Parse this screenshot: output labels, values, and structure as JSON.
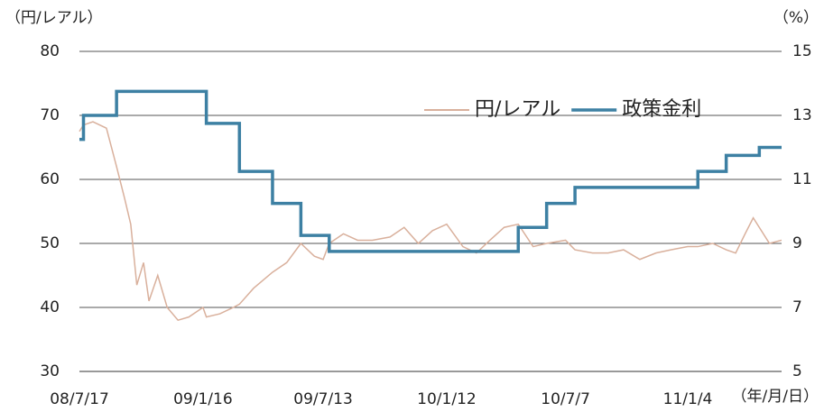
{
  "chart_data": {
    "type": "line",
    "ylabel": "（円/レアル）",
    "y2label": "（%）",
    "xlabel": "（年/月/日）",
    "x": [
      "08/7/17",
      "08/7/23",
      "08/8/6",
      "08/8/26",
      "08/9/10",
      "08/9/22",
      "08/10/1",
      "08/10/10",
      "08/10/20",
      "08/10/28",
      "08/11/10",
      "08/11/24",
      "08/12/10",
      "08/12/26",
      "09/1/16",
      "09/1/21",
      "09/2/10",
      "09/3/2",
      "09/3/11",
      "09/4/1",
      "09/4/29",
      "09/5/20",
      "09/6/10",
      "09/6/30",
      "09/7/13",
      "09/7/22",
      "09/8/12",
      "09/9/2",
      "09/9/24",
      "09/10/20",
      "09/11/10",
      "09/12/1",
      "09/12/22",
      "10/1/12",
      "10/2/5",
      "10/2/25",
      "10/3/17",
      "10/4/7",
      "10/4/28",
      "10/5/20",
      "10/6/9",
      "10/7/7",
      "10/7/21",
      "10/8/16",
      "10/9/8",
      "10/10/1",
      "10/10/25",
      "10/11/18",
      "10/12/10",
      "11/1/4",
      "11/1/19",
      "11/2/10",
      "11/3/2",
      "11/3/16",
      "11/3/30",
      "11/4/11",
      "11/4/20",
      "11/5/5",
      "11/5/23"
    ],
    "series": [
      {
        "name": "円/レアル",
        "color": "#d9b09c",
        "axis": "y",
        "step": false,
        "values": [
          67.5,
          68.5,
          69,
          68,
          62,
          57,
          53,
          43.5,
          47,
          41,
          45,
          40,
          38,
          38.5,
          40,
          38.5,
          39,
          40,
          40.5,
          43,
          45.5,
          47,
          50,
          48,
          47.5,
          50,
          51.5,
          50.5,
          50.5,
          51,
          52.5,
          50,
          52,
          53,
          49.5,
          48.5,
          50.5,
          52.5,
          53,
          49.5,
          50,
          50.5,
          49,
          48.5,
          48.5,
          49,
          47.5,
          48.5,
          49,
          49.5,
          49.5,
          50,
          49,
          48.5,
          51.5,
          54,
          52.5,
          50,
          50.5
        ]
      },
      {
        "name": "政策金利",
        "color": "#3d80a3",
        "axis": "y2",
        "step": true,
        "values": [
          12.25,
          13,
          13,
          13,
          13.75,
          13.75,
          13.75,
          13.75,
          13.75,
          13.75,
          13.75,
          13.75,
          13.75,
          13.75,
          13.75,
          12.75,
          12.75,
          12.75,
          11.25,
          11.25,
          10.25,
          10.25,
          9.25,
          9.25,
          9.25,
          8.75,
          8.75,
          8.75,
          8.75,
          8.75,
          8.75,
          8.75,
          8.75,
          8.75,
          8.75,
          8.75,
          8.75,
          8.75,
          9.5,
          9.5,
          10.25,
          10.25,
          10.75,
          10.75,
          10.75,
          10.75,
          10.75,
          10.75,
          10.75,
          10.75,
          11.25,
          11.25,
          11.75,
          11.75,
          11.75,
          11.75,
          12,
          12,
          12
        ]
      }
    ],
    "xlim": [
      "08/7/17",
      "11/5/23"
    ],
    "xticks": [
      "08/7/17",
      "09/1/16",
      "09/7/13",
      "10/1/12",
      "10/7/7",
      "11/1/4"
    ],
    "ylim": [
      30,
      80
    ],
    "yticks": [
      30,
      40,
      50,
      60,
      70,
      80
    ],
    "y2lim": [
      5,
      15
    ],
    "y2ticks": [
      5,
      7,
      9,
      11,
      13,
      15
    ],
    "grid": true
  }
}
